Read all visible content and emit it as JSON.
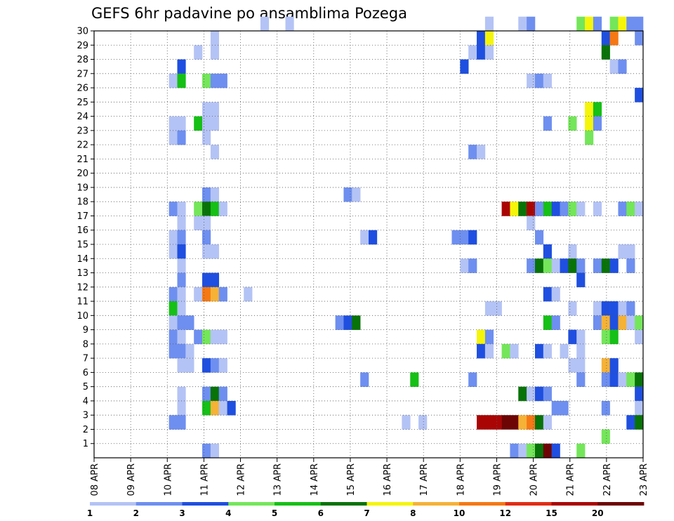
{
  "chart_data": {
    "type": "heatmap",
    "title": "GEFS 6hr padavine po ansamblima Pozega",
    "xlabel": "",
    "ylabel": "",
    "x_tick_labels": [
      "08 APR",
      "09 APR",
      "10 APR",
      "11 APR",
      "12 APR",
      "13 APR",
      "14 APR",
      "15 APR",
      "16 APR",
      "17 APR",
      "18 APR",
      "19 APR",
      "20 APR",
      "21 APR",
      "22 APR",
      "23 APR"
    ],
    "y_tick_labels": [
      "1",
      "2",
      "3",
      "4",
      "5",
      "6",
      "7",
      "8",
      "9",
      "10",
      "11",
      "12",
      "13",
      "14",
      "15",
      "16",
      "17",
      "18",
      "19",
      "20",
      "21",
      "22",
      "23",
      "24",
      "25",
      "26",
      "27",
      "28",
      "29",
      "30"
    ],
    "xlim_days": [
      0,
      15
    ],
    "ylim_members": [
      0,
      30
    ],
    "grid": true,
    "legend_placement": "bottom",
    "legend": {
      "labels": [
        "1",
        "2",
        "3",
        "4",
        "5",
        "6",
        "7",
        "8",
        "10",
        "12",
        "15",
        "20"
      ],
      "colors": [
        "#b4c3f5",
        "#6e8ff0",
        "#1f4fe0",
        "#74e65a",
        "#16c016",
        "#087308",
        "#f5f50a",
        "#f5b237",
        "#f57814",
        "#e12d14",
        "#aa0505",
        "#6e0505"
      ]
    },
    "colors": [
      "#b4c3f5",
      "#6e8ff0",
      "#1f4fe0",
      "#74e65a",
      "#16c016",
      "#087308",
      "#f5f50a",
      "#f5b237",
      "#f57814",
      "#e12d14",
      "#aa0505",
      "#6e0505"
    ],
    "cells": [
      [
        30,
        20,
        0
      ],
      [
        30,
        23,
        0
      ],
      [
        30,
        47,
        0
      ],
      [
        30,
        51,
        0
      ],
      [
        30,
        52,
        1
      ],
      [
        30,
        58,
        3
      ],
      [
        30,
        59,
        6
      ],
      [
        30,
        60,
        1
      ],
      [
        30,
        62,
        3
      ],
      [
        30,
        63,
        6
      ],
      [
        30,
        64,
        1
      ],
      [
        30,
        65,
        1
      ],
      [
        29,
        14,
        0
      ],
      [
        29,
        46,
        2
      ],
      [
        29,
        47,
        6
      ],
      [
        29,
        61,
        2
      ],
      [
        29,
        62,
        8
      ],
      [
        29,
        65,
        1
      ],
      [
        28,
        12,
        0
      ],
      [
        28,
        14,
        0
      ],
      [
        28,
        45,
        0
      ],
      [
        28,
        46,
        2
      ],
      [
        28,
        47,
        0
      ],
      [
        28,
        61,
        5
      ],
      [
        27,
        10,
        2
      ],
      [
        27,
        44,
        2
      ],
      [
        27,
        62,
        0
      ],
      [
        27,
        63,
        1
      ],
      [
        26,
        9,
        0
      ],
      [
        26,
        10,
        4
      ],
      [
        26,
        13,
        3
      ],
      [
        26,
        14,
        1
      ],
      [
        26,
        15,
        1
      ],
      [
        26,
        52,
        0
      ],
      [
        26,
        53,
        1
      ],
      [
        26,
        54,
        0
      ],
      [
        25,
        65,
        2
      ],
      [
        24,
        13,
        0
      ],
      [
        24,
        14,
        0
      ],
      [
        24,
        59,
        6
      ],
      [
        24,
        60,
        4
      ],
      [
        23,
        9,
        0
      ],
      [
        23,
        10,
        0
      ],
      [
        23,
        12,
        4
      ],
      [
        23,
        13,
        0
      ],
      [
        23,
        14,
        0
      ],
      [
        23,
        54,
        1
      ],
      [
        23,
        57,
        3
      ],
      [
        23,
        59,
        6
      ],
      [
        23,
        60,
        1
      ],
      [
        22,
        9,
        0
      ],
      [
        22,
        10,
        1
      ],
      [
        22,
        13,
        0
      ],
      [
        22,
        59,
        3
      ],
      [
        21,
        14,
        0
      ],
      [
        21,
        45,
        1
      ],
      [
        21,
        46,
        0
      ],
      [
        18,
        13,
        1
      ],
      [
        18,
        14,
        0
      ],
      [
        18,
        30,
        1
      ],
      [
        18,
        31,
        0
      ],
      [
        17,
        9,
        1
      ],
      [
        17,
        10,
        0
      ],
      [
        17,
        12,
        3
      ],
      [
        17,
        13,
        5
      ],
      [
        17,
        14,
        4
      ],
      [
        17,
        15,
        0
      ],
      [
        17,
        49,
        10
      ],
      [
        17,
        50,
        6
      ],
      [
        17,
        51,
        5
      ],
      [
        17,
        52,
        10
      ],
      [
        17,
        53,
        1
      ],
      [
        17,
        54,
        4
      ],
      [
        17,
        55,
        2
      ],
      [
        17,
        56,
        1
      ],
      [
        17,
        57,
        3
      ],
      [
        17,
        58,
        0
      ],
      [
        17,
        60,
        0
      ],
      [
        17,
        63,
        1
      ],
      [
        17,
        64,
        3
      ],
      [
        17,
        65,
        0
      ],
      [
        16,
        10,
        0
      ],
      [
        16,
        12,
        0
      ],
      [
        16,
        13,
        0
      ],
      [
        16,
        52,
        0
      ],
      [
        15,
        9,
        0
      ],
      [
        15,
        10,
        1
      ],
      [
        15,
        13,
        1
      ],
      [
        15,
        32,
        0
      ],
      [
        15,
        33,
        2
      ],
      [
        15,
        43,
        1
      ],
      [
        15,
        44,
        1
      ],
      [
        15,
        45,
        2
      ],
      [
        15,
        53,
        1
      ],
      [
        14,
        9,
        0
      ],
      [
        14,
        10,
        2
      ],
      [
        14,
        13,
        0
      ],
      [
        14,
        14,
        0
      ],
      [
        14,
        54,
        2
      ],
      [
        14,
        57,
        0
      ],
      [
        14,
        63,
        0
      ],
      [
        14,
        64,
        0
      ],
      [
        13,
        10,
        0
      ],
      [
        13,
        44,
        0
      ],
      [
        13,
        45,
        1
      ],
      [
        13,
        52,
        1
      ],
      [
        13,
        53,
        5
      ],
      [
        13,
        54,
        3
      ],
      [
        13,
        55,
        0
      ],
      [
        13,
        56,
        2
      ],
      [
        13,
        57,
        5
      ],
      [
        13,
        58,
        1
      ],
      [
        13,
        60,
        1
      ],
      [
        13,
        61,
        5
      ],
      [
        13,
        62,
        2
      ],
      [
        13,
        64,
        1
      ],
      [
        12,
        10,
        1
      ],
      [
        12,
        13,
        2
      ],
      [
        12,
        14,
        2
      ],
      [
        12,
        58,
        2
      ],
      [
        11,
        9,
        1
      ],
      [
        11,
        10,
        0
      ],
      [
        11,
        12,
        0
      ],
      [
        11,
        13,
        8
      ],
      [
        11,
        14,
        7
      ],
      [
        11,
        15,
        1
      ],
      [
        11,
        18,
        0
      ],
      [
        11,
        54,
        2
      ],
      [
        11,
        55,
        0
      ],
      [
        10,
        9,
        4
      ],
      [
        10,
        10,
        0
      ],
      [
        10,
        47,
        0
      ],
      [
        10,
        48,
        0
      ],
      [
        10,
        57,
        0
      ],
      [
        10,
        60,
        0
      ],
      [
        10,
        61,
        2
      ],
      [
        10,
        62,
        2
      ],
      [
        10,
        63,
        0
      ],
      [
        10,
        64,
        1
      ],
      [
        9,
        9,
        0
      ],
      [
        9,
        10,
        1
      ],
      [
        9,
        11,
        1
      ],
      [
        9,
        29,
        1
      ],
      [
        9,
        30,
        2
      ],
      [
        9,
        31,
        5
      ],
      [
        9,
        54,
        4
      ],
      [
        9,
        55,
        1
      ],
      [
        9,
        60,
        1
      ],
      [
        9,
        61,
        7
      ],
      [
        9,
        62,
        2
      ],
      [
        9,
        63,
        7
      ],
      [
        9,
        64,
        0
      ],
      [
        9,
        65,
        3
      ],
      [
        8,
        9,
        1
      ],
      [
        8,
        10,
        0
      ],
      [
        8,
        12,
        1
      ],
      [
        8,
        13,
        3
      ],
      [
        8,
        14,
        0
      ],
      [
        8,
        15,
        0
      ],
      [
        8,
        46,
        6
      ],
      [
        8,
        47,
        1
      ],
      [
        8,
        57,
        2
      ],
      [
        8,
        58,
        0
      ],
      [
        8,
        61,
        3
      ],
      [
        8,
        62,
        4
      ],
      [
        8,
        65,
        0
      ],
      [
        7,
        9,
        1
      ],
      [
        7,
        10,
        1
      ],
      [
        7,
        11,
        0
      ],
      [
        7,
        46,
        2
      ],
      [
        7,
        47,
        0
      ],
      [
        7,
        49,
        3
      ],
      [
        7,
        50,
        0
      ],
      [
        7,
        53,
        2
      ],
      [
        7,
        54,
        0
      ],
      [
        7,
        56,
        0
      ],
      [
        7,
        58,
        0
      ],
      [
        6,
        10,
        0
      ],
      [
        6,
        11,
        0
      ],
      [
        6,
        13,
        2
      ],
      [
        6,
        14,
        1
      ],
      [
        6,
        15,
        0
      ],
      [
        6,
        57,
        0
      ],
      [
        6,
        58,
        0
      ],
      [
        6,
        61,
        7
      ],
      [
        6,
        62,
        2
      ],
      [
        5,
        32,
        1
      ],
      [
        5,
        38,
        4
      ],
      [
        5,
        45,
        1
      ],
      [
        5,
        58,
        1
      ],
      [
        5,
        61,
        1
      ],
      [
        5,
        62,
        2
      ],
      [
        5,
        63,
        0
      ],
      [
        5,
        64,
        3
      ],
      [
        5,
        65,
        5
      ],
      [
        4,
        10,
        0
      ],
      [
        4,
        13,
        1
      ],
      [
        4,
        14,
        5
      ],
      [
        4,
        15,
        1
      ],
      [
        4,
        51,
        5
      ],
      [
        4,
        52,
        0
      ],
      [
        4,
        53,
        2
      ],
      [
        4,
        54,
        1
      ],
      [
        4,
        65,
        2
      ],
      [
        3,
        10,
        0
      ],
      [
        3,
        13,
        4
      ],
      [
        3,
        14,
        7
      ],
      [
        3,
        15,
        0
      ],
      [
        3,
        16,
        2
      ],
      [
        3,
        55,
        1
      ],
      [
        3,
        56,
        1
      ],
      [
        3,
        61,
        1
      ],
      [
        3,
        65,
        0
      ],
      [
        2,
        9,
        1
      ],
      [
        2,
        10,
        1
      ],
      [
        2,
        37,
        0
      ],
      [
        2,
        39,
        0
      ],
      [
        2,
        46,
        10
      ],
      [
        2,
        47,
        10
      ],
      [
        2,
        48,
        10
      ],
      [
        2,
        49,
        11
      ],
      [
        2,
        50,
        11
      ],
      [
        2,
        51,
        7
      ],
      [
        2,
        52,
        8
      ],
      [
        2,
        53,
        5
      ],
      [
        2,
        54,
        0
      ],
      [
        2,
        64,
        2
      ],
      [
        2,
        65,
        5
      ],
      [
        1,
        61,
        3
      ],
      [
        0,
        13,
        1
      ],
      [
        0,
        14,
        0
      ],
      [
        0,
        50,
        1
      ],
      [
        0,
        51,
        0
      ],
      [
        0,
        52,
        3
      ],
      [
        0,
        53,
        5
      ],
      [
        0,
        54,
        11
      ],
      [
        0,
        55,
        2
      ],
      [
        0,
        58,
        3
      ]
    ]
  }
}
